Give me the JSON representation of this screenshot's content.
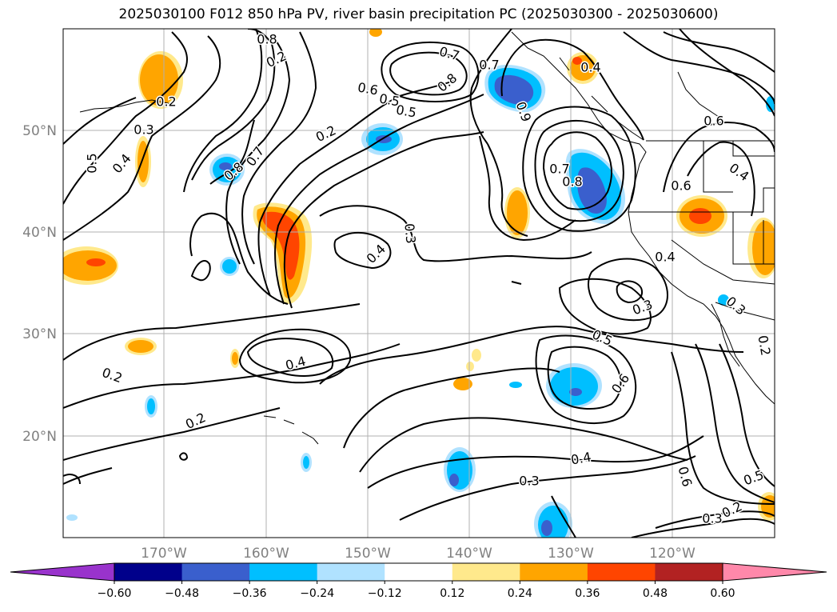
{
  "title": "2025030100 F012 850 hPa PV, river basin precipitation PC (2025030300 - 2025030600)",
  "lon_ticks": [
    "170°W",
    "160°W",
    "150°W",
    "140°W",
    "130°W",
    "120°W"
  ],
  "lat_ticks": [
    "50°N",
    "40°N",
    "30°N",
    "20°N"
  ],
  "contour_labels": [
    "0.8",
    "0.2",
    "0.5",
    "0.7",
    "0.8",
    "0.6",
    "0.5",
    "0.9",
    "0.7",
    "0.2",
    "0.3",
    "0.5",
    "0.4",
    "0.2",
    "0.8",
    "0.7",
    "0.6",
    "0.4",
    "0.8",
    "0.7",
    "0.6",
    "0.4",
    "0.3",
    "0.4",
    "0.4",
    "0.3",
    "0.3",
    "0.2",
    "0.5",
    "0.6",
    "0.2",
    "0.2",
    "0.4",
    "0.4",
    "0.3",
    "0.6",
    "0.5",
    "0.3",
    "0.2"
  ],
  "colorbar": {
    "ticks": [
      "−0.60",
      "−0.48",
      "−0.36",
      "−0.24",
      "−0.12",
      "0.12",
      "0.24",
      "0.36",
      "0.48",
      "0.60"
    ],
    "colors": [
      "#9933cc",
      "#00008b",
      "#3a5fcd",
      "#00bfff",
      "#b0e2ff",
      "#ffffff",
      "#ffe98c",
      "#ffa500",
      "#ff4500",
      "#b22222",
      "#ff88aa"
    ]
  }
}
